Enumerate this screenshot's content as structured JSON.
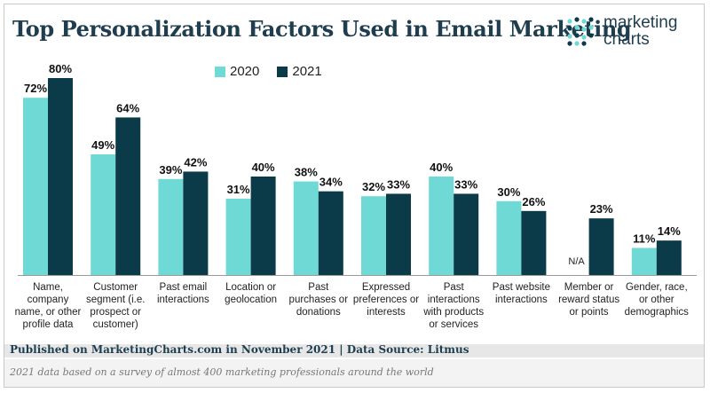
{
  "header": {
    "title": "Top Personalization Factors Used in Email Marketing",
    "logo_line1": "marketing",
    "logo_line2": "charts"
  },
  "colors": {
    "series_2020": "#6fd9d5",
    "series_2021": "#0b3a49",
    "title": "#1e3d4f"
  },
  "footer": {
    "source": "Published on MarketingCharts.com in November 2021 | Data Source: Litmus",
    "note": "2021 data based on a survey of almost 400 marketing professionals around the world"
  },
  "chart_data": {
    "type": "bar",
    "title": "Top Personalization Factors Used in Email Marketing",
    "xlabel": "",
    "ylabel": "",
    "ylim": [
      0,
      80
    ],
    "legend_position": "top-left",
    "grid": false,
    "categories": [
      [
        "Name,",
        "company",
        "name, or other",
        "profile data"
      ],
      [
        "Customer",
        "segment (i.e.",
        "prospect or",
        "customer)"
      ],
      [
        "Past email",
        "interactions"
      ],
      [
        "Location or",
        "geolocation"
      ],
      [
        "Past",
        "purchases or",
        "donations"
      ],
      [
        "Expressed",
        "preferences or",
        "interests"
      ],
      [
        "Past",
        "interactions",
        "with products",
        "or services"
      ],
      [
        "Past website",
        "interactions"
      ],
      [
        "Member or",
        "reward status",
        "or points"
      ],
      [
        "Gender, race,",
        "or other",
        "demographics"
      ]
    ],
    "series": [
      {
        "name": "2020",
        "values": [
          72,
          49,
          39,
          31,
          38,
          32,
          40,
          30,
          null,
          11
        ],
        "labels": [
          "72%",
          "49%",
          "39%",
          "31%",
          "38%",
          "32%",
          "40%",
          "30%",
          "N/A",
          "11%"
        ]
      },
      {
        "name": "2021",
        "values": [
          80,
          64,
          42,
          40,
          34,
          33,
          33,
          26,
          23,
          14
        ],
        "labels": [
          "80%",
          "64%",
          "42%",
          "40%",
          "34%",
          "33%",
          "33%",
          "26%",
          "23%",
          "14%"
        ]
      }
    ]
  }
}
